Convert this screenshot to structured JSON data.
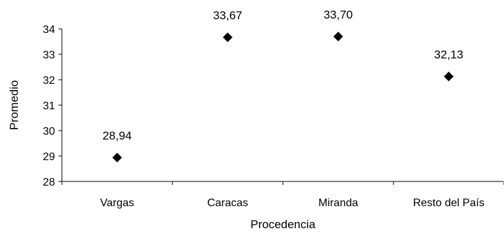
{
  "chart_data": {
    "type": "scatter",
    "categories": [
      "Vargas",
      "Caracas",
      "Miranda",
      "Resto del País"
    ],
    "values": [
      28.94,
      33.67,
      33.7,
      32.13
    ],
    "data_labels": [
      "28,94",
      "33,67",
      "33,70",
      "32,13"
    ],
    "xlabel": "Procedencia",
    "ylabel": "Promedio",
    "ylim": [
      28,
      34
    ],
    "yticks": [
      28,
      29,
      30,
      31,
      32,
      33,
      34
    ],
    "marker": "diamond",
    "marker_color": "#000000",
    "grid": false,
    "legend": "none"
  }
}
